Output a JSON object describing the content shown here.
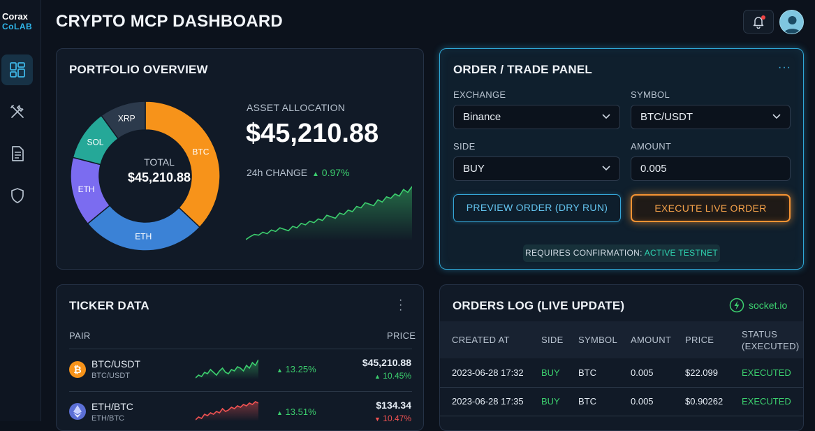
{
  "brand": {
    "line1": "Corax",
    "line2": "CoLAB"
  },
  "app": {
    "title": "CRYPTO MCP DASHBOARD"
  },
  "sidebar": {
    "items": [
      {
        "icon": "dashboard-icon",
        "active": true
      },
      {
        "icon": "tools-icon",
        "active": false
      },
      {
        "icon": "document-icon",
        "active": false
      },
      {
        "icon": "shield-icon",
        "active": false
      }
    ]
  },
  "header": {
    "notifications_icon": "bell-icon",
    "avatar_icon": "user-avatar"
  },
  "portfolio": {
    "title": "PORTFOLIO OVERVIEW",
    "donut": {
      "total_label": "TOTAL",
      "total_value": "$45,210.88",
      "segments": [
        {
          "label": "BTC",
          "percent": 37,
          "color": "#f7931a"
        },
        {
          "label": "ETH",
          "percent": 27,
          "color": "#3b82d6"
        },
        {
          "label": "ETH",
          "percent": 15,
          "color": "#7b6cf0"
        },
        {
          "label": "SOL",
          "percent": 11,
          "color": "#25a898"
        },
        {
          "label": "XRP",
          "percent": 10,
          "color": "#2c3a4c"
        }
      ]
    },
    "allocation_label": "ASSET ALLOCATION",
    "allocation_value": "$45,210.88",
    "change_label": "24h CHANGE",
    "change_value": "0.97%",
    "sparkline": [
      2,
      6,
      9,
      8,
      12,
      10,
      15,
      13,
      18,
      16,
      14,
      20,
      18,
      24,
      22,
      27,
      25,
      30,
      28,
      35,
      33,
      31,
      38,
      36,
      42,
      40,
      47,
      45,
      52,
      50,
      48,
      56,
      53,
      60,
      58,
      64,
      61,
      70,
      66,
      74
    ]
  },
  "order_panel": {
    "title": "ORDER / TRADE PANEL",
    "menu_icon": "more-horizontal-icon",
    "exchange": {
      "label": "EXCHANGE",
      "value": "Binance"
    },
    "symbol": {
      "label": "SYMBOL",
      "value": "BTC/USDT"
    },
    "side": {
      "label": "SIDE",
      "value": "BUY"
    },
    "amount": {
      "label": "AMOUNT",
      "value": "0.005"
    },
    "preview_button": "PREVIEW ORDER (DRY RUN)",
    "live_button": "EXECUTE LIVE ORDER",
    "confirmation_prefix": "REQUIRES CONFIRMATION:",
    "confirmation_status": "ACTIVE TESTNET"
  },
  "ticker": {
    "title": "TICKER DATA",
    "menu_icon": "more-vertical-icon",
    "columns": {
      "pair": "PAIR",
      "price": "PRICE"
    },
    "rows": [
      {
        "pair": "BTC/USDT",
        "sub": "BTC/USDT",
        "icon": "bitcoin-icon",
        "change": "13.25%",
        "price": "$45,210.88",
        "price_change": "10.45%",
        "trend": "up",
        "spark": [
          5,
          7,
          6,
          9,
          8,
          11,
          9,
          7,
          10,
          12,
          9,
          8,
          11,
          10,
          13,
          12,
          10,
          14,
          12,
          16,
          14,
          18
        ]
      },
      {
        "pair": "ETH/BTC",
        "sub": "ETH/BTC",
        "icon": "ethereum-icon",
        "change": "13.51%",
        "price": "$134.34",
        "price_change": "10.47%",
        "trend": "down",
        "spark": [
          4,
          6,
          5,
          8,
          7,
          9,
          8,
          10,
          9,
          12,
          10,
          11,
          13,
          12,
          14,
          13,
          15,
          14,
          16,
          15,
          17,
          16
        ]
      }
    ]
  },
  "orders_log": {
    "title": "ORDERS LOG (LIVE UPDATE)",
    "socket_label": "socket.io",
    "columns": [
      "CREATED AT",
      "SIDE",
      "SYMBOL",
      "AMOUNT",
      "PRICE",
      "STATUS",
      "(EXECUTED)"
    ],
    "rows": [
      {
        "created_at": "2023-06-28 17:32",
        "side": "BUY",
        "symbol": "BTC",
        "amount": "0.005",
        "price": "$22.099",
        "status": "EXECUTED"
      },
      {
        "created_at": "2023-06-28 17:35",
        "side": "BUY",
        "symbol": "BTC",
        "amount": "0.005",
        "price": "$0.90262",
        "status": "EXECUTED"
      }
    ]
  }
}
